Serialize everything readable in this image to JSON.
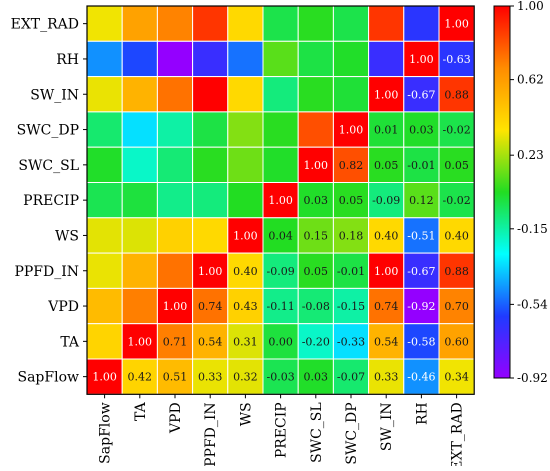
{
  "chart_data": {
    "type": "heatmap",
    "title": "",
    "xlabel": "",
    "ylabel": "",
    "variables": [
      "SapFlow",
      "TA",
      "VPD",
      "PPFD_IN",
      "WS",
      "PRECIP",
      "SWC_SL",
      "SWC_DP",
      "SW_IN",
      "RH",
      "EXT_RAD"
    ],
    "rows_top_to_bottom": [
      "EXT_RAD",
      "RH",
      "SW_IN",
      "SWC_DP",
      "SWC_SL",
      "PRECIP",
      "WS",
      "PPFD_IN",
      "VPD",
      "TA",
      "SapFlow"
    ],
    "columns_left_to_right": [
      "SapFlow",
      "TA",
      "VPD",
      "PPFD_IN",
      "WS",
      "PRECIP",
      "SWC_SL",
      "SWC_DP",
      "SW_IN",
      "RH",
      "EXT_RAD"
    ],
    "matrix": [
      [
        1.0,
        0.42,
        0.51,
        0.33,
        0.32,
        -0.03,
        0.03,
        -0.07,
        0.33,
        -0.46,
        0.34
      ],
      [
        0.42,
        1.0,
        0.71,
        0.54,
        0.31,
        0.0,
        -0.2,
        -0.33,
        0.54,
        -0.58,
        0.6
      ],
      [
        0.51,
        0.71,
        1.0,
        0.74,
        0.43,
        -0.11,
        -0.08,
        -0.15,
        0.74,
        -0.92,
        0.7
      ],
      [
        0.33,
        0.54,
        0.74,
        1.0,
        0.4,
        -0.09,
        0.05,
        -0.01,
        1.0,
        -0.67,
        0.88
      ],
      [
        0.32,
        0.31,
        0.43,
        0.4,
        1.0,
        0.04,
        0.15,
        0.18,
        0.4,
        -0.51,
        0.4
      ],
      [
        -0.03,
        0.0,
        -0.11,
        -0.09,
        0.04,
        1.0,
        0.03,
        0.05,
        -0.09,
        0.12,
        -0.02
      ],
      [
        0.03,
        -0.2,
        -0.08,
        0.05,
        0.15,
        0.03,
        1.0,
        0.82,
        0.05,
        -0.01,
        0.05
      ],
      [
        -0.07,
        -0.33,
        -0.15,
        -0.01,
        0.18,
        0.05,
        0.82,
        1.0,
        0.01,
        0.03,
        -0.02
      ],
      [
        0.33,
        0.54,
        0.74,
        1.0,
        0.4,
        -0.09,
        0.05,
        0.01,
        1.0,
        -0.67,
        0.88
      ],
      [
        -0.46,
        -0.58,
        -0.92,
        -0.67,
        -0.51,
        0.12,
        -0.01,
        0.03,
        -0.67,
        1.0,
        -0.63
      ],
      [
        0.34,
        0.6,
        0.7,
        0.88,
        0.4,
        -0.02,
        0.05,
        -0.02,
        0.88,
        -0.63,
        1.0
      ]
    ],
    "labeled_region": "diagonal and lower-right triangle",
    "colorbar": {
      "min": -0.92,
      "max": 1.0,
      "tick_labels": [
        "1.00",
        "0.62",
        "0.23",
        "-0.15",
        "-0.54",
        "-0.92"
      ],
      "tick_values": [
        1.0,
        0.62,
        0.23,
        -0.15,
        -0.54,
        -0.92
      ],
      "colors_top_to_bottom": [
        "#ff0000",
        "#ff8c00",
        "#ffe400",
        "#22dd22",
        "#00ffff",
        "#1f3bff",
        "#9400ff"
      ]
    },
    "grid": false,
    "legend": "colorbar right"
  }
}
